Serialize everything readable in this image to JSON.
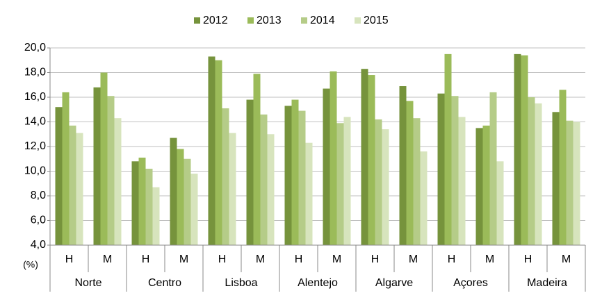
{
  "chart_data": {
    "type": "bar",
    "y_label": "(%)",
    "groups": [
      "Norte",
      "Centro",
      "Lisboa",
      "Alentejo",
      "Algarve",
      "Açores",
      "Madeira"
    ],
    "categories": [
      "H",
      "M",
      "H",
      "M",
      "H",
      "M",
      "H",
      "M",
      "H",
      "M",
      "H",
      "M",
      "H",
      "M"
    ],
    "series": [
      {
        "name": "2012",
        "color": "#76933c",
        "values": [
          15.2,
          16.8,
          10.8,
          12.7,
          19.3,
          15.8,
          15.3,
          16.7,
          18.3,
          16.9,
          16.3,
          13.5,
          19.5,
          14.8
        ]
      },
      {
        "name": "2013",
        "color": "#9bbb59",
        "values": [
          16.4,
          18.0,
          11.1,
          11.8,
          19.0,
          17.9,
          15.8,
          18.1,
          17.8,
          15.7,
          19.5,
          13.7,
          19.4,
          16.6
        ]
      },
      {
        "name": "2014",
        "color": "#b5cc88",
        "values": [
          13.7,
          16.1,
          10.2,
          11.0,
          15.1,
          14.6,
          14.9,
          13.9,
          14.2,
          14.3,
          16.1,
          16.4,
          16.0,
          14.1
        ]
      },
      {
        "name": "2015",
        "color": "#d7e4bd",
        "values": [
          13.1,
          14.3,
          8.7,
          9.8,
          13.1,
          13.0,
          12.3,
          14.4,
          13.4,
          11.6,
          14.4,
          10.8,
          15.5,
          14.0
        ]
      }
    ],
    "ylim": [
      4,
      20
    ],
    "yticks": [
      {
        "value": 4,
        "label": "4,0"
      },
      {
        "value": 6,
        "label": "6,0"
      },
      {
        "value": 8,
        "label": "8,0"
      },
      {
        "value": 10,
        "label": "10,0"
      },
      {
        "value": 12,
        "label": "12,0"
      },
      {
        "value": 14,
        "label": "14,0"
      },
      {
        "value": 16,
        "label": "16,0"
      },
      {
        "value": 18,
        "label": "18,0"
      },
      {
        "value": 20,
        "label": "20,0"
      }
    ],
    "grid": true
  }
}
